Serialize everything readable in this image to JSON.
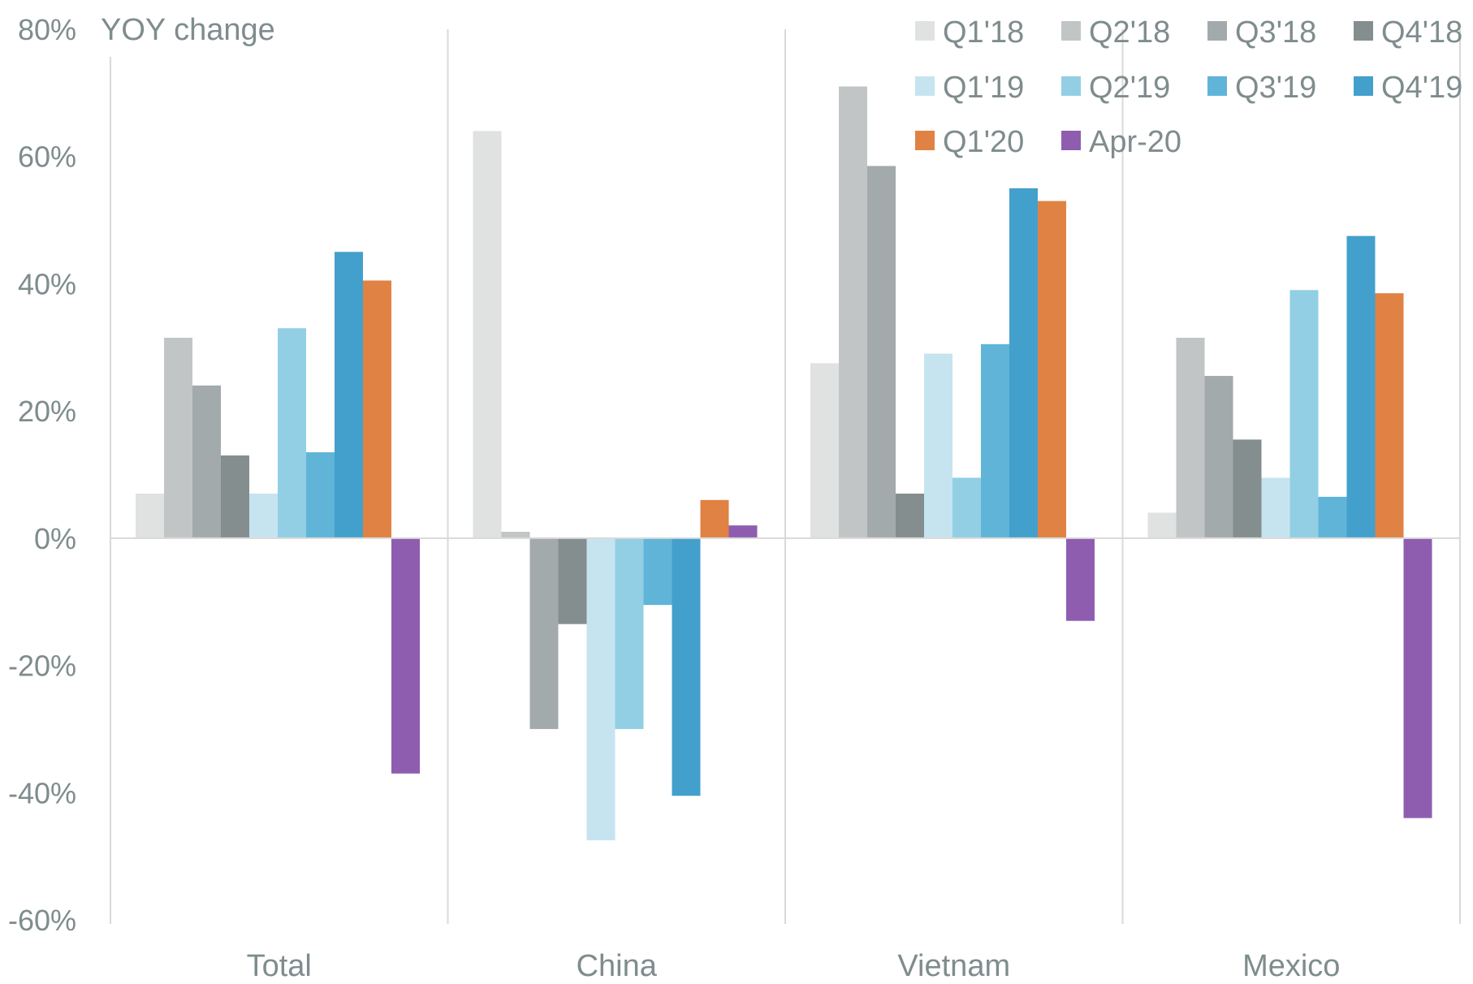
{
  "chart_data": {
    "type": "bar",
    "title": "",
    "ylabel": "YOY change",
    "xlabel": "",
    "ylim": [
      -60,
      80
    ],
    "yticks": [
      80,
      60,
      40,
      20,
      0,
      -20,
      -40,
      -60
    ],
    "ytick_labels": [
      "80%",
      "60%",
      "40%",
      "20%",
      "0%",
      "-20%",
      "-40%",
      "-60%"
    ],
    "categories": [
      "Total",
      "China",
      "Vietnam",
      "Mexico"
    ],
    "legend_position": "top-right",
    "series": [
      {
        "name": "Q1'18",
        "color": "#e0e2e2",
        "values": [
          7,
          64,
          27.5,
          4
        ]
      },
      {
        "name": "Q2'18",
        "color": "#c1c5c5",
        "values": [
          31.5,
          1,
          71,
          31.5
        ]
      },
      {
        "name": "Q3'18",
        "color": "#a3aaab",
        "values": [
          24,
          -30,
          58.5,
          25.5
        ]
      },
      {
        "name": "Q4'18",
        "color": "#848e8e",
        "values": [
          13,
          -13.5,
          7,
          15.5
        ]
      },
      {
        "name": "Q1'19",
        "color": "#c6e4f0",
        "values": [
          7,
          -47.5,
          29,
          9.5
        ]
      },
      {
        "name": "Q2'19",
        "color": "#92cfe4",
        "values": [
          33,
          -30,
          9.5,
          39
        ]
      },
      {
        "name": "Q3'19",
        "color": "#60b4d8",
        "values": [
          13.5,
          -10.5,
          30.5,
          6.5
        ]
      },
      {
        "name": "Q4'19",
        "color": "#43a0cc",
        "values": [
          45,
          -40.5,
          55,
          47.5
        ]
      },
      {
        "name": "Q1'20",
        "color": "#e08243",
        "values": [
          40.5,
          6,
          53,
          38.5
        ]
      },
      {
        "name": "Apr-20",
        "color": "#8e5db0",
        "values": [
          -37,
          2,
          -13,
          -44
        ]
      }
    ]
  }
}
